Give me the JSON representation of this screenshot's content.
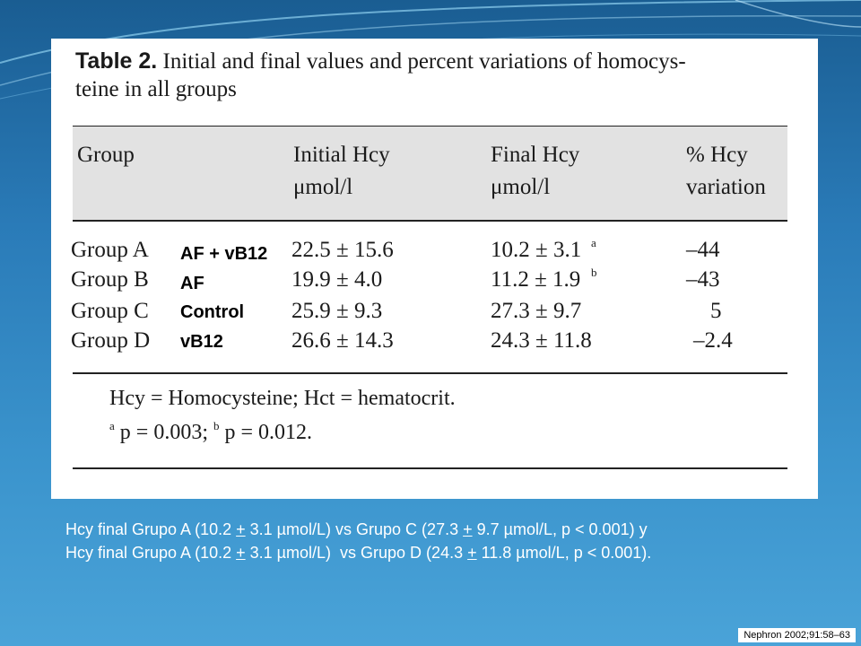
{
  "table": {
    "caption_label": "Table 2.",
    "caption_line1": "Initial and final values and percent variations of homocys-",
    "caption_line2": "teine in all groups",
    "headers": {
      "group": "Group",
      "initial_l1": "Initial Hcy",
      "initial_l2": "μmol/l",
      "final_l1": "Final Hcy",
      "final_l2": "μmol/l",
      "variation_l1": "% Hcy",
      "variation_l2": "variation"
    },
    "rows": [
      {
        "group": "Group A",
        "initial": "22.5 ± 15.6",
        "final": "10.2 ± 3.1",
        "final_sup": "a",
        "variation": "–44"
      },
      {
        "group": "Group B",
        "initial": "19.9 ± 4.0",
        "final": "11.2 ± 1.9",
        "final_sup": "b",
        "variation": "–43"
      },
      {
        "group": "Group C",
        "initial": "25.9 ± 9.3",
        "final": "27.3 ± 9.7",
        "final_sup": "",
        "variation": "5"
      },
      {
        "group": "Group D",
        "initial": "26.6 ± 14.3",
        "final": "24.3 ± 11.8",
        "final_sup": "",
        "variation": "–2.4"
      }
    ],
    "footnote1": "Hcy = Homocysteine; Hct = hematocrit.",
    "footnote2_a_sup": "a",
    "footnote2_a": " p = 0.003; ",
    "footnote2_b_sup": "b",
    "footnote2_b": " p = 0.012."
  },
  "overlay_labels": [
    "AF + vB12",
    "AF",
    "Control",
    "vB12"
  ],
  "summary": {
    "line1": [
      {
        "t": "Hcy final Grupo A (10.2 ",
        "u": false
      },
      {
        "t": "+",
        "u": true
      },
      {
        "t": " 3.1 µmol/L) vs Grupo C (27.3 ",
        "u": false
      },
      {
        "t": "+",
        "u": true
      },
      {
        "t": " 9.7 µmol/L, p < 0.001) y",
        "u": false
      }
    ],
    "line2": [
      {
        "t": "Hcy final Grupo A (10.2 ",
        "u": false
      },
      {
        "t": "+",
        "u": true
      },
      {
        "t": " 3.1 µmol/L)  vs Grupo D (24.3 ",
        "u": false
      },
      {
        "t": "+",
        "u": true
      },
      {
        "t": " 11.8 µmol/L, p < 0.001).",
        "u": false
      }
    ]
  },
  "source": "Nephron 2002;91:58–63"
}
